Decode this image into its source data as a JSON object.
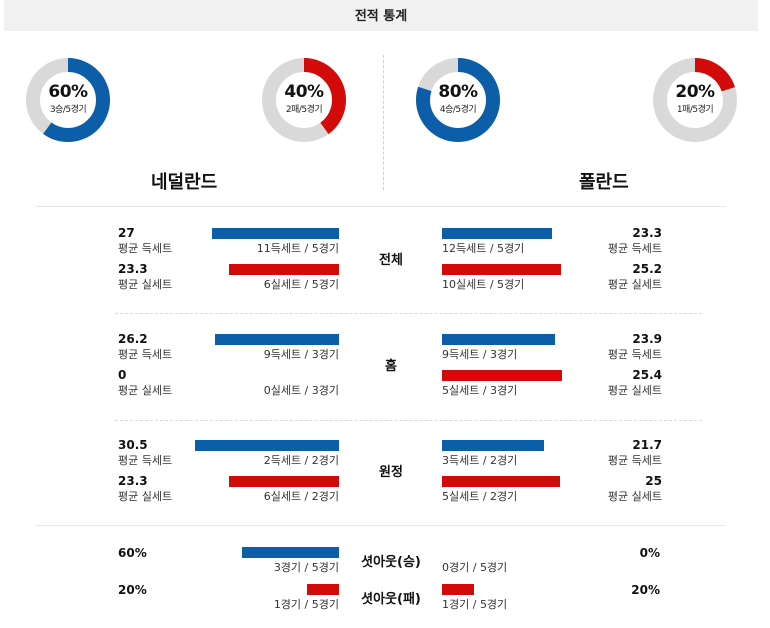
{
  "header": {
    "title": "전적 통계"
  },
  "colors": {
    "blue": "#0b5ea7",
    "red": "#d20a0a",
    "ring_bg": "#d9d9d9"
  },
  "teams": {
    "left": {
      "name": "네덜란드",
      "win_donut": {
        "percent": "60%",
        "detail": "3승/5경기",
        "fraction": 0.6,
        "color": "blue"
      },
      "loss_donut": {
        "percent": "40%",
        "detail": "2패/5경기",
        "fraction": 0.4,
        "color": "red"
      }
    },
    "right": {
      "name": "폴란드",
      "win_donut": {
        "percent": "80%",
        "detail": "4승/5경기",
        "fraction": 0.8,
        "color": "blue"
      },
      "loss_donut": {
        "percent": "20%",
        "detail": "1패/5경기",
        "fraction": 0.2,
        "color": "red"
      }
    }
  },
  "sections": [
    {
      "label": "전체",
      "left": {
        "won": {
          "value": "27",
          "label": "평균 득세트",
          "detail": "11득세트 / 5경기"
        },
        "lost": {
          "value": "23.3",
          "label": "평균 실세트",
          "detail": "6실세트 / 5경기"
        }
      },
      "right": {
        "won": {
          "value": "23.3",
          "label": "평균 득세트",
          "detail": "12득세트 / 5경기"
        },
        "lost": {
          "value": "25.2",
          "label": "평균 실세트",
          "detail": "10실세트 / 5경기"
        }
      }
    },
    {
      "label": "홈",
      "left": {
        "won": {
          "value": "26.2",
          "label": "평균 득세트",
          "detail": "9득세트 / 3경기"
        },
        "lost": {
          "value": "0",
          "label": "평균 실세트",
          "detail": "0실세트 / 3경기"
        }
      },
      "right": {
        "won": {
          "value": "23.9",
          "label": "평균 득세트",
          "detail": "9득세트 / 3경기"
        },
        "lost": {
          "value": "25.4",
          "label": "평균 실세트",
          "detail": "5실세트 / 3경기"
        }
      }
    },
    {
      "label": "원정",
      "left": {
        "won": {
          "value": "30.5",
          "label": "평균 득세트",
          "detail": "2득세트 / 2경기"
        },
        "lost": {
          "value": "23.3",
          "label": "평균 실세트",
          "detail": "6실세트 / 2경기"
        }
      },
      "right": {
        "won": {
          "value": "21.7",
          "label": "평균 득세트",
          "detail": "3득세트 / 2경기"
        },
        "lost": {
          "value": "25",
          "label": "평균 실세트",
          "detail": "5실세트 / 2경기"
        }
      }
    }
  ],
  "shutouts": [
    {
      "label": "셧아웃(승)",
      "left": {
        "value": "60%",
        "detail": "3경기 / 5경기",
        "fraction": 0.6
      },
      "right": {
        "value": "0%",
        "detail": "0경기 / 5경기",
        "fraction": 0
      }
    },
    {
      "label": "셧아웃(패)",
      "left": {
        "value": "20%",
        "detail": "1경기 / 5경기",
        "fraction": 0.2
      },
      "right": {
        "value": "20%",
        "detail": "1경기 / 5경기",
        "fraction": 0.2
      }
    }
  ]
}
